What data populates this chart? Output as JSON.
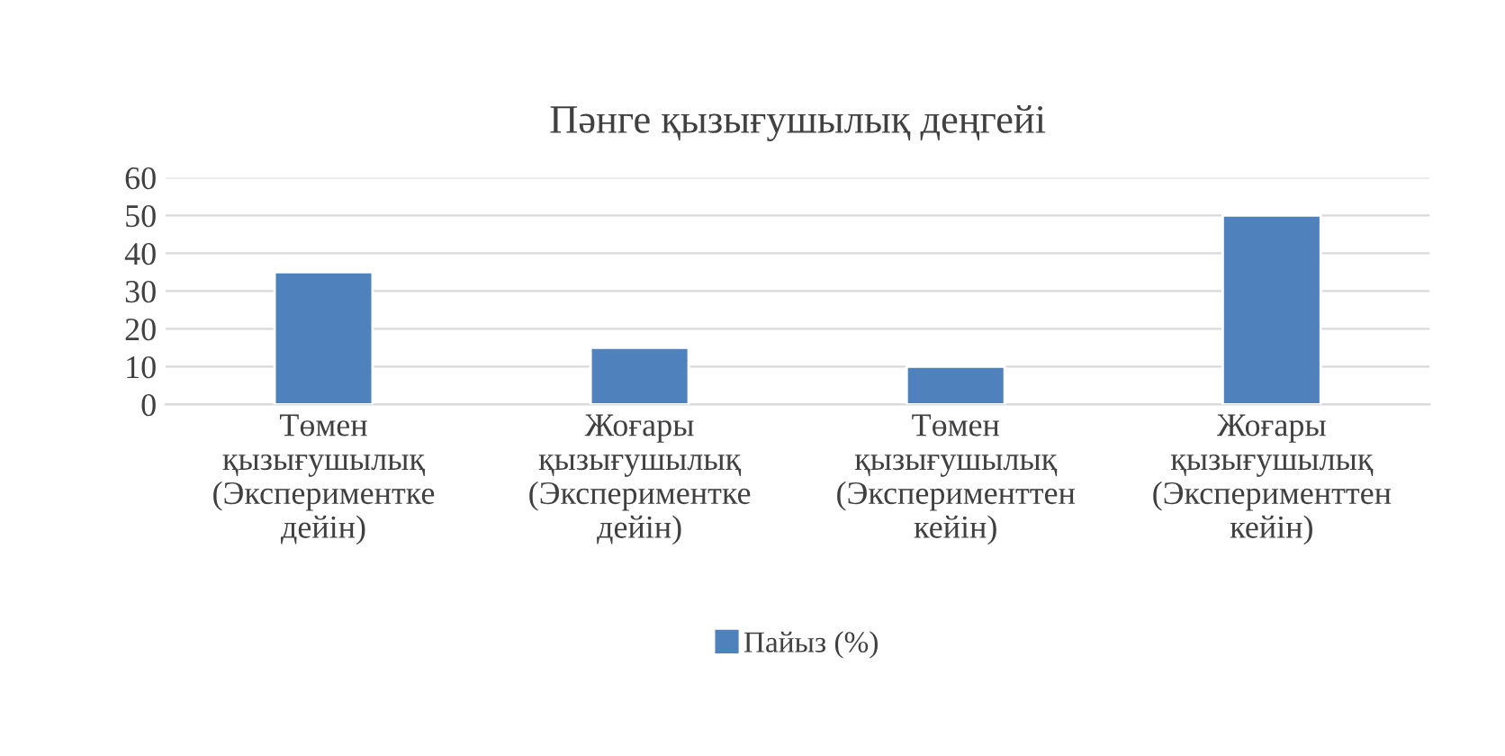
{
  "chart_data": {
    "type": "bar",
    "title": "Пәнге қызығушылық деңгейі",
    "categories": [
      "Төмен\nқызығушылық\n(Экспериментке\nдейін)",
      "Жоғары\nқызығушылық\n(Экспериментке\nдейін)",
      "Төмен\nқызығушылық\n(Эксперименттен\nкейін)",
      "Жоғары\nқызығушылық\n(Эксперименттен\nкейін)"
    ],
    "series": [
      {
        "name": "Пайыз (%)",
        "color": "#4f81bd",
        "values": [
          35,
          15,
          10,
          50
        ]
      }
    ],
    "ylim": [
      0,
      60
    ],
    "yticks": [
      0,
      10,
      20,
      30,
      40,
      50,
      60
    ],
    "grid": "y",
    "legend": "bottom"
  }
}
